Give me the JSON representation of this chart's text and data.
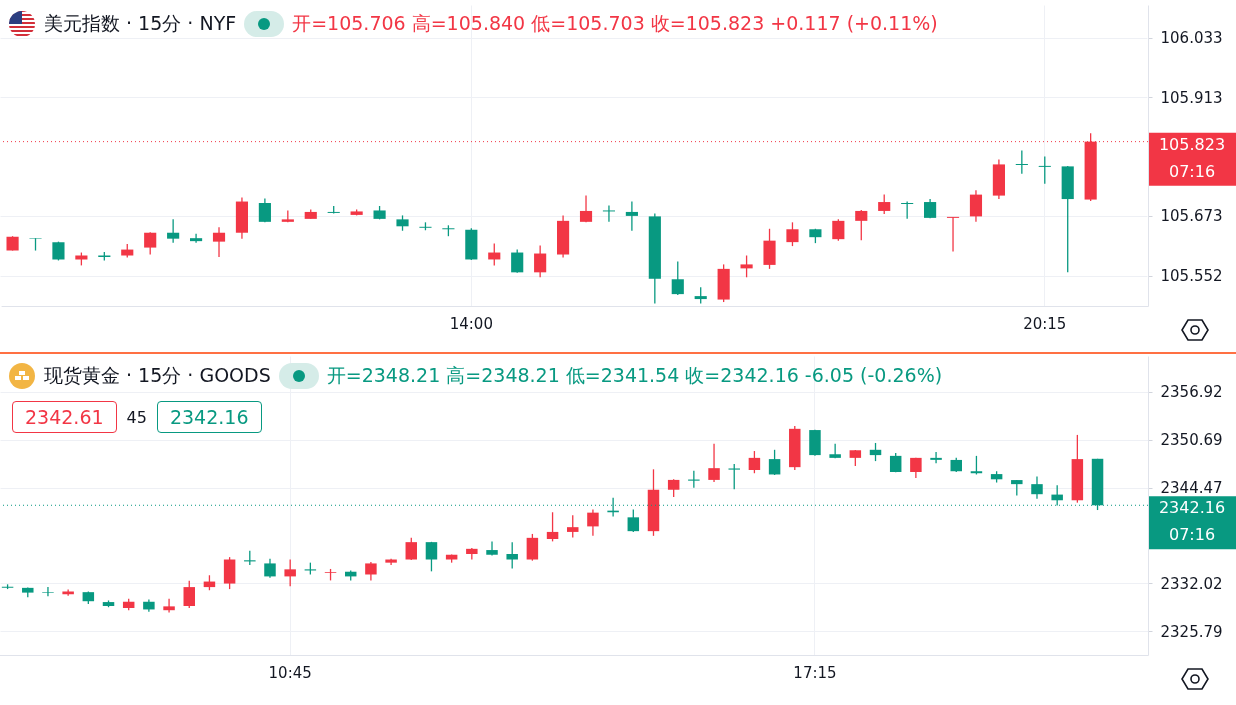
{
  "chart_data": [
    {
      "type": "candlestick",
      "title": "美元指数 · 15分 · NYF",
      "subtitle": "开=105.706 高=105.840 低=105.703 收=105.823 +0.117 (+0.11%)",
      "annotations": [
        "07:16"
      ],
      "categories": [
        null,
        null,
        null,
        null,
        null,
        null,
        null,
        null,
        null,
        null,
        null,
        null,
        null,
        null,
        null,
        null,
        null,
        null,
        null,
        null,
        "14:00",
        null,
        null,
        null,
        null,
        null,
        null,
        null,
        null,
        null,
        null,
        null,
        null,
        null,
        null,
        null,
        null,
        null,
        null,
        null,
        null,
        null,
        null,
        null,
        null,
        "20:15",
        null,
        null
      ],
      "ohlc": [
        [
          105.603,
          105.632,
          105.603,
          105.631
        ],
        [
          105.628,
          105.628,
          105.603,
          105.627
        ],
        [
          105.62,
          105.621,
          105.583,
          105.585
        ],
        [
          105.585,
          105.599,
          105.573,
          105.593
        ],
        [
          105.593,
          105.6,
          105.583,
          105.59
        ],
        [
          105.593,
          105.616,
          105.589,
          105.605
        ],
        [
          105.609,
          105.64,
          105.595,
          105.639
        ],
        [
          105.639,
          105.666,
          105.619,
          105.627
        ],
        [
          105.628,
          105.637,
          105.619,
          105.622
        ],
        [
          105.621,
          105.65,
          105.59,
          105.639
        ],
        [
          105.639,
          105.71,
          105.627,
          105.702
        ],
        [
          105.699,
          105.708,
          105.66,
          105.661
        ],
        [
          105.661,
          105.684,
          105.66,
          105.666
        ],
        [
          105.667,
          105.686,
          105.667,
          105.681
        ],
        [
          105.681,
          105.693,
          105.678,
          105.679
        ],
        [
          105.675,
          105.686,
          105.674,
          105.682
        ],
        [
          105.684,
          105.693,
          105.666,
          105.667
        ],
        [
          105.666,
          105.674,
          105.643,
          105.652
        ],
        [
          105.651,
          105.66,
          105.644,
          105.649
        ],
        [
          105.648,
          105.654,
          105.632,
          105.646
        ],
        [
          105.645,
          105.648,
          105.584,
          105.585
        ],
        [
          105.585,
          105.617,
          105.573,
          105.599
        ],
        [
          105.599,
          105.605,
          105.558,
          105.559
        ],
        [
          105.559,
          105.613,
          105.549,
          105.597
        ],
        [
          105.595,
          105.674,
          105.589,
          105.663
        ],
        [
          105.661,
          105.714,
          105.66,
          105.683
        ],
        [
          105.684,
          105.694,
          105.661,
          105.682
        ],
        [
          105.681,
          105.702,
          105.643,
          105.673
        ],
        [
          105.672,
          105.678,
          105.496,
          105.546
        ],
        [
          105.545,
          105.581,
          105.513,
          105.515
        ],
        [
          105.511,
          105.529,
          105.496,
          105.505
        ],
        [
          105.504,
          105.575,
          105.499,
          105.566
        ],
        [
          105.567,
          105.593,
          105.549,
          105.575
        ],
        [
          105.574,
          105.647,
          105.566,
          105.623
        ],
        [
          105.62,
          105.66,
          105.612,
          105.646
        ],
        [
          105.646,
          105.647,
          105.618,
          105.63
        ],
        [
          105.626,
          105.666,
          105.623,
          105.663
        ],
        [
          105.663,
          105.685,
          105.624,
          105.683
        ],
        [
          105.683,
          105.716,
          105.677,
          105.701
        ],
        [
          105.699,
          105.702,
          105.667,
          105.697
        ],
        [
          105.701,
          105.707,
          105.668,
          105.669
        ],
        [
          105.669,
          105.671,
          105.601,
          105.671
        ],
        [
          105.672,
          105.725,
          105.661,
          105.716
        ],
        [
          105.714,
          105.787,
          105.707,
          105.777
        ],
        [
          105.778,
          105.805,
          105.758,
          105.776
        ],
        [
          105.774,
          105.793,
          105.738,
          105.772
        ],
        [
          105.773,
          105.774,
          105.559,
          105.707
        ],
        [
          105.706,
          105.84,
          105.703,
          105.823
        ]
      ],
      "colors": [
        "#f23645",
        "#089981",
        "#089981",
        "#f23645",
        "#089981",
        "#f23645",
        "#f23645",
        "#089981",
        "#089981",
        "#f23645",
        "#f23645",
        "#089981",
        "#f23645",
        "#f23645",
        "#089981",
        "#f23645",
        "#089981",
        "#089981",
        "#089981",
        "#089981",
        "#089981",
        "#f23645",
        "#089981",
        "#f23645",
        "#f23645",
        "#f23645",
        "#089981",
        "#089981",
        "#089981",
        "#089981",
        "#089981",
        "#f23645",
        "#f23645",
        "#f23645",
        "#f23645",
        "#089981",
        "#f23645",
        "#f23645",
        "#f23645",
        "#089981",
        "#089981",
        "#f23645",
        "#f23645",
        "#f23645",
        "#089981",
        "#089981",
        "#089981",
        "#f23645"
      ],
      "ylim": [
        105.491,
        106.099
      ],
      "yticks": [
        106.033,
        105.913,
        105.673,
        105.552
      ],
      "ref_lines": [
        {
          "axis": "y",
          "value": 105.823,
          "label": "105.823",
          "color": "#f23645",
          "line_style": "dotted"
        }
      ],
      "grid": true
    },
    {
      "type": "candlestick",
      "title": "现货黄金 · 15分 · GOODS",
      "subtitle": "开=2348.21 高=2348.21 低=2341.54 收=2342.16 -6.05 (-0.26%)",
      "annotations": [
        "07:16",
        "2342.61",
        "45",
        "2342.16"
      ],
      "categories": [
        null,
        null,
        null,
        null,
        null,
        null,
        null,
        null,
        null,
        null,
        null,
        null,
        null,
        null,
        "10:45",
        null,
        null,
        null,
        null,
        null,
        null,
        null,
        null,
        null,
        null,
        null,
        null,
        null,
        null,
        null,
        null,
        null,
        null,
        null,
        null,
        null,
        null,
        null,
        null,
        null,
        "17:15",
        null,
        null,
        null,
        null,
        null,
        null,
        null,
        null,
        null,
        null,
        null,
        null,
        null,
        null
      ],
      "ohlc": [
        [
          2331.56,
          2331.87,
          2331.25,
          2331.41
        ],
        [
          2331.41,
          2331.45,
          2330.18,
          2330.79
        ],
        [
          2330.87,
          2331.51,
          2330.33,
          2330.79
        ],
        [
          2330.59,
          2331.2,
          2330.38,
          2330.95
        ],
        [
          2330.85,
          2330.95,
          2329.31,
          2329.67
        ],
        [
          2329.56,
          2329.77,
          2328.89,
          2329.05
        ],
        [
          2328.8,
          2330.0,
          2328.5,
          2329.6
        ],
        [
          2329.6,
          2329.9,
          2328.3,
          2328.6
        ],
        [
          2328.5,
          2330.0,
          2328.2,
          2329.0
        ],
        [
          2329.05,
          2332.33,
          2328.79,
          2331.51
        ],
        [
          2331.51,
          2333.05,
          2331.1,
          2332.23
        ],
        [
          2331.97,
          2335.41,
          2331.25,
          2335.1
        ],
        [
          2335.0,
          2336.23,
          2334.38,
          2334.85
        ],
        [
          2334.59,
          2335.2,
          2332.74,
          2332.9
        ],
        [
          2332.9,
          2335.1,
          2331.61,
          2333.82
        ],
        [
          2333.82,
          2334.69,
          2333.15,
          2333.67
        ],
        [
          2333.36,
          2333.87,
          2332.38,
          2333.46
        ],
        [
          2333.51,
          2333.67,
          2332.38,
          2332.9
        ],
        [
          2333.15,
          2334.79,
          2332.38,
          2334.59
        ],
        [
          2334.69,
          2335.2,
          2334.38,
          2335.1
        ],
        [
          2335.1,
          2337.92,
          2335.05,
          2337.36
        ],
        [
          2337.36,
          2337.4,
          2333.56,
          2335.1
        ],
        [
          2335.1,
          2335.75,
          2334.69,
          2335.72
        ],
        [
          2335.82,
          2336.59,
          2335.1,
          2336.49
        ],
        [
          2336.33,
          2337.46,
          2335.61,
          2335.72
        ],
        [
          2335.82,
          2337.36,
          2333.92,
          2335.1
        ],
        [
          2335.1,
          2338.43,
          2334.95,
          2337.92
        ],
        [
          2337.77,
          2341.25,
          2337.46,
          2338.69
        ],
        [
          2338.69,
          2340.85,
          2337.97,
          2339.31
        ],
        [
          2339.41,
          2341.61,
          2338.18,
          2341.2
        ],
        [
          2341.46,
          2343.15,
          2340.69,
          2341.25
        ],
        [
          2340.59,
          2341.61,
          2338.69,
          2338.79
        ],
        [
          2338.79,
          2346.84,
          2338.18,
          2344.18
        ],
        [
          2344.18,
          2345.56,
          2343.25,
          2345.46
        ],
        [
          2345.51,
          2346.64,
          2344.43,
          2345.36
        ],
        [
          2345.46,
          2350.18,
          2345.2,
          2346.99
        ],
        [
          2346.95,
          2347.54,
          2344.23,
          2346.8
        ],
        [
          2346.75,
          2349.22,
          2346.33,
          2348.33
        ],
        [
          2348.17,
          2349.38,
          2346.1,
          2346.17
        ],
        [
          2347.12,
          2352.48,
          2346.75,
          2352.11
        ],
        [
          2351.95,
          2352.0,
          2348.6,
          2348.69
        ],
        [
          2348.8,
          2350.16,
          2348.28,
          2348.33
        ],
        [
          2348.33,
          2349.35,
          2347.28,
          2349.32
        ],
        [
          2349.38,
          2350.27,
          2347.91,
          2348.69
        ],
        [
          2348.59,
          2348.96,
          2346.45,
          2346.49
        ],
        [
          2346.49,
          2348.35,
          2345.7,
          2348.33
        ],
        [
          2348.33,
          2349.11,
          2347.64,
          2348.07
        ],
        [
          2348.06,
          2348.33,
          2346.49,
          2346.59
        ],
        [
          2346.59,
          2348.59,
          2346.17,
          2346.33
        ],
        [
          2346.22,
          2346.59,
          2345.12,
          2345.54
        ],
        [
          2345.44,
          2345.46,
          2343.44,
          2344.91
        ],
        [
          2344.91,
          2345.91,
          2343.02,
          2343.6
        ],
        [
          2343.55,
          2344.75,
          2342.13,
          2342.81
        ],
        [
          2342.81,
          2351.32,
          2342.5,
          2348.17
        ],
        [
          2348.21,
          2348.21,
          2341.54,
          2342.16
        ]
      ],
      "colors": [
        "#089981",
        "#089981",
        "#089981",
        "#f23645",
        "#089981",
        "#089981",
        "#f23645",
        "#089981",
        "#f23645",
        "#f23645",
        "#f23645",
        "#f23645",
        "#089981",
        "#089981",
        "#f23645",
        "#089981",
        "#f23645",
        "#089981",
        "#f23645",
        "#f23645",
        "#f23645",
        "#089981",
        "#f23645",
        "#f23645",
        "#089981",
        "#089981",
        "#f23645",
        "#f23645",
        "#f23645",
        "#f23645",
        "#089981",
        "#089981",
        "#f23645",
        "#f23645",
        "#089981",
        "#f23645",
        "#089981",
        "#f23645",
        "#089981",
        "#f23645",
        "#089981",
        "#089981",
        "#f23645",
        "#089981",
        "#089981",
        "#f23645",
        "#089981",
        "#089981",
        "#089981",
        "#089981",
        "#089981",
        "#089981",
        "#089981",
        "#f23645",
        "#089981"
      ],
      "ylim": [
        2322.67,
        2361.59
      ],
      "yticks": [
        2356.92,
        2350.69,
        2344.47,
        2332.02,
        2325.79
      ],
      "ref_lines": [
        {
          "axis": "y",
          "value": 2342.16,
          "label": "2342.16",
          "color": "#089981",
          "line_style": "dotted"
        }
      ],
      "grid": true
    }
  ]
}
